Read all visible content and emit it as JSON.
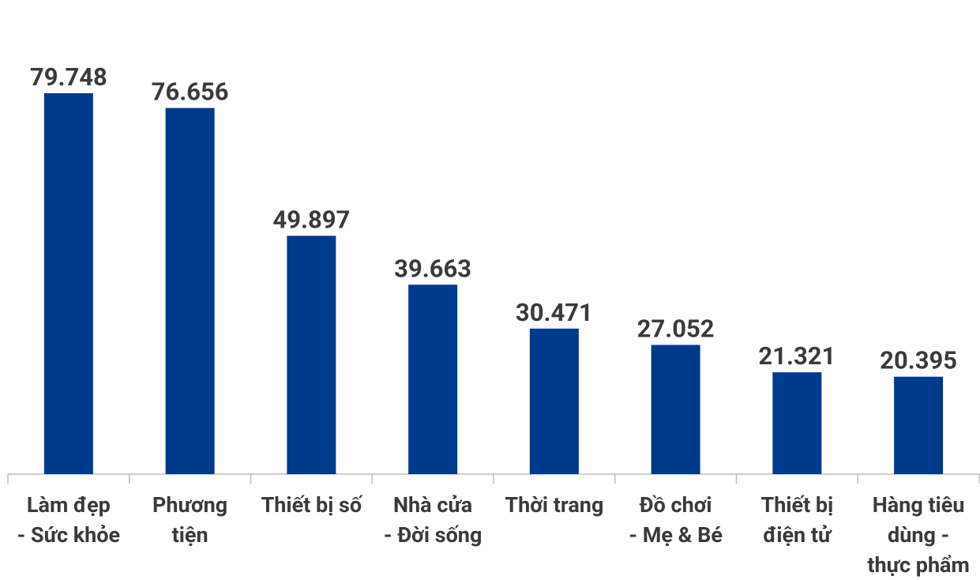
{
  "chart_data": {
    "type": "bar",
    "categories": [
      [
        "Làm đẹp",
        "- Sức khỏe"
      ],
      [
        "Phương",
        "tiện"
      ],
      [
        "Thiết bị số"
      ],
      [
        "Nhà cửa",
        "- Đời sống"
      ],
      [
        "Thời trang"
      ],
      [
        "Đồ chơi",
        "- Mẹ & Bé"
      ],
      [
        "Thiết bị",
        "điện tử"
      ],
      [
        "Hàng tiêu",
        "dùng -",
        "thực phẩm"
      ]
    ],
    "values": [
      79.748,
      76.656,
      49.897,
      39.663,
      30.471,
      27.052,
      21.321,
      20.395
    ],
    "color": "#003a8c"
  }
}
